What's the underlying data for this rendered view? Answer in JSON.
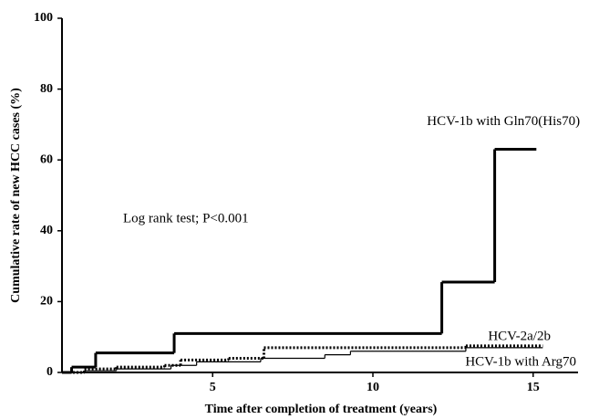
{
  "chart_data": {
    "type": "step",
    "x_label": "Time after completion of treatment (years)",
    "y_label": "Cumulative rate of new HCC cases (%)",
    "xlim": [
      0.3,
      16.4
    ],
    "ylim": [
      0,
      100
    ],
    "xticks": [
      5,
      10,
      15
    ],
    "yticks": [
      0,
      20,
      40,
      60,
      80,
      100
    ],
    "annotations": [
      "Log rank test; P<0.001"
    ],
    "series": [
      {
        "name": "HCV-1b with Gln70(His70)",
        "color": "#000",
        "style": "thick",
        "x": [
          0.3,
          0.6,
          1.35,
          3.8,
          12.15,
          13.8,
          15.1
        ],
        "values": [
          0,
          1.5,
          5.5,
          11,
          25.5,
          63,
          63
        ]
      },
      {
        "name": "HCV-2a/2b",
        "color": "#000",
        "style": "dotted",
        "x": [
          0.3,
          1.0,
          2.0,
          3.5,
          4.0,
          5.5,
          6.6,
          12.9,
          15.3
        ],
        "values": [
          0,
          1,
          1.5,
          2,
          3.5,
          4,
          7,
          7.5,
          7.5
        ]
      },
      {
        "name": "HCV-1b with Arg70",
        "color": "#000",
        "style": "thin",
        "x": [
          0.3,
          1.0,
          2.0,
          3.7,
          4.5,
          6.5,
          8.5,
          9.3,
          12.9,
          15.3
        ],
        "values": [
          0,
          0.5,
          1,
          2,
          3,
          4,
          5,
          6,
          7,
          7
        ]
      }
    ]
  }
}
